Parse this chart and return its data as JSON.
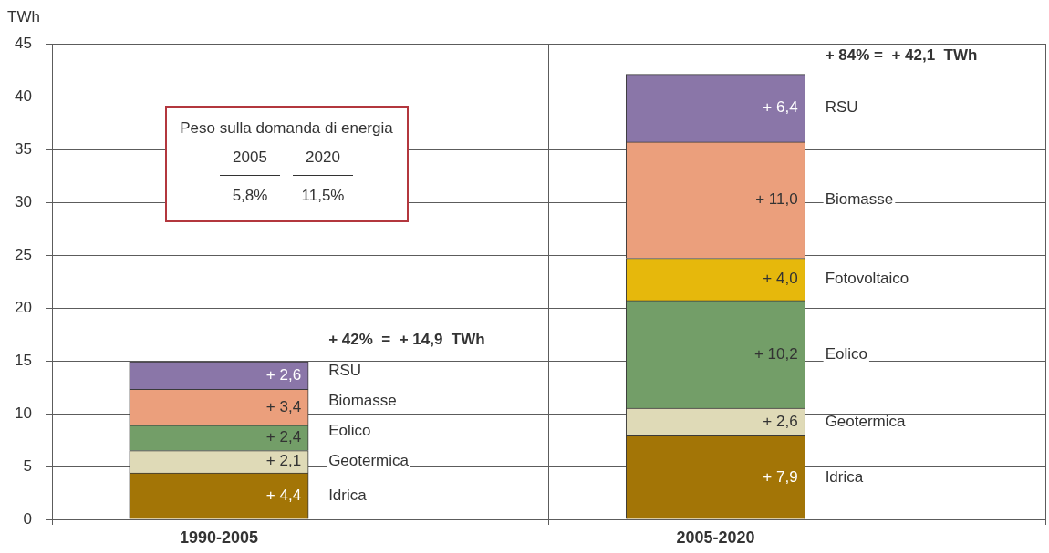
{
  "chart_data": {
    "type": "bar",
    "stacked": true,
    "ylabel": "TWh",
    "categories": [
      "1990-2005",
      "2005-2020"
    ],
    "series": [
      {
        "name": "Idrica",
        "color": "#a37506",
        "values": [
          4.4,
          7.9
        ],
        "value_labels": [
          "+ 4,4",
          "+ 7,9"
        ]
      },
      {
        "name": "Geotermica",
        "color": "#dfdab7",
        "values": [
          2.1,
          2.6
        ],
        "value_labels": [
          "+ 2,1",
          "+ 2,6"
        ]
      },
      {
        "name": "Eolico",
        "color": "#739e68",
        "values": [
          2.4,
          10.2
        ],
        "value_labels": [
          "+ 2,4",
          "+ 10,2"
        ]
      },
      {
        "name": "Fotovoltaico",
        "color": "#e6b80c",
        "values": [
          null,
          4.0
        ],
        "value_labels": [
          null,
          "+ 4,0"
        ]
      },
      {
        "name": "Biomasse",
        "color": "#eb9f7c",
        "values": [
          3.4,
          11.0
        ],
        "value_labels": [
          "+ 3,4",
          "+ 11,0"
        ]
      },
      {
        "name": "RSU",
        "color": "#8a76a8",
        "values": [
          2.6,
          6.4
        ],
        "value_labels": [
          "+ 2,6",
          "+ 6,4"
        ]
      }
    ],
    "totals": [
      "+ 42%  =  + 14,9  TWh",
      "+ 84% =  + 42,1  TWh"
    ],
    "annotations": [
      "Peso sulla domanda di energia",
      "2005",
      "2020",
      "5,8%",
      "11,5%"
    ],
    "ylim": [
      0,
      45
    ],
    "yticks": [
      0,
      5,
      10,
      15,
      20,
      25,
      30,
      35,
      40,
      45
    ],
    "grid": true
  }
}
